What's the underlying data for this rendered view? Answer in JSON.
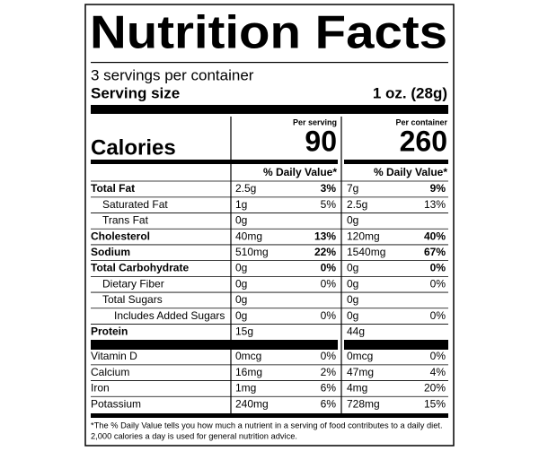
{
  "title": "Nutrition Facts",
  "servings": "3 servings per container",
  "serving_size_label": "Serving size",
  "serving_size": "1 oz. (28g)",
  "per_serving": "Per serving",
  "per_container": "Per container",
  "calories_label": "Calories",
  "calories_serving": 90,
  "calories_container": 260,
  "dv_header": "% Daily Value*",
  "nutrients": [
    {
      "name": "Total Fat",
      "bold": true,
      "indent": 0,
      "serving": "2.5g",
      "serving_dv": "3%",
      "container": "7g",
      "container_dv": "9%"
    },
    {
      "name": "Saturated Fat",
      "bold": false,
      "indent": 1,
      "serving": "1g",
      "serving_dv": "5%",
      "container": "2.5g",
      "container_dv": "13%"
    },
    {
      "name": "Trans Fat",
      "bold": false,
      "indent": 1,
      "serving": "0g",
      "container": "0g"
    },
    {
      "name": "Cholesterol",
      "bold": true,
      "indent": 0,
      "serving": "40mg",
      "serving_dv": "13%",
      "container": "120mg",
      "container_dv": "40%"
    },
    {
      "name": "Sodium",
      "bold": true,
      "indent": 0,
      "serving": "510mg",
      "serving_dv": "22%",
      "container": "1540mg",
      "container_dv": "67%"
    },
    {
      "name": "Total Carbohydrate",
      "bold": true,
      "indent": 0,
      "serving": "0g",
      "serving_dv": "0%",
      "container": "0g",
      "container_dv": "0%"
    },
    {
      "name": "Dietary Fiber",
      "bold": false,
      "indent": 1,
      "serving": "0g",
      "serving_dv": "0%",
      "container": "0g",
      "container_dv": "0%"
    },
    {
      "name": "Total Sugars",
      "bold": false,
      "indent": 1,
      "serving": "0g",
      "container": "0g"
    },
    {
      "name": "Includes Added Sugars",
      "bold": false,
      "indent": 2,
      "serving": "0g",
      "serving_dv": "0%",
      "container": "0g",
      "container_dv": "0%"
    },
    {
      "name": "Protein",
      "bold": true,
      "indent": 0,
      "serving": "15g",
      "container": "44g"
    }
  ],
  "vitamins": [
    {
      "name": "Vitamin D",
      "serving": "0mcg",
      "serving_dv": "0%",
      "container": "0mcg",
      "container_dv": "0%"
    },
    {
      "name": "Calcium",
      "serving": "16mg",
      "serving_dv": "2%",
      "container": "47mg",
      "container_dv": "4%"
    },
    {
      "name": "Iron",
      "serving": "1mg",
      "serving_dv": "6%",
      "container": "4mg",
      "container_dv": "20%"
    },
    {
      "name": "Potassium",
      "serving": "240mg",
      "serving_dv": "6%",
      "container": "728mg",
      "container_dv": "15%"
    }
  ],
  "footnote": [
    "*The % Daily Value tells you how much a nutrient in a serving of food contributes to a daily diet.",
    "2,000 calories a day is used for general nutrition advice."
  ]
}
